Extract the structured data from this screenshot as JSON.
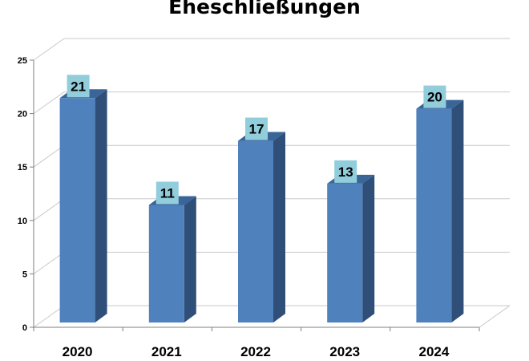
{
  "chart_data": {
    "type": "bar",
    "title": "Eheschließungen",
    "categories": [
      "2020",
      "2021",
      "2022",
      "2023",
      "2024"
    ],
    "values": [
      21,
      11,
      17,
      13,
      20
    ],
    "ylim": [
      0,
      25
    ],
    "yticks": [
      "0",
      "5",
      "10",
      "15",
      "20",
      "25"
    ],
    "grid": true,
    "legend": "none",
    "data_labels": [
      "21",
      "11",
      "17",
      "13",
      "20"
    ],
    "colors": {
      "bar_front": "#4f81bd",
      "bar_side": "#2f4f79",
      "bar_top": "#3a6598",
      "label_box": "#92cddc",
      "grid": "#c9c9c9",
      "axis": "#7f7f7f"
    }
  }
}
